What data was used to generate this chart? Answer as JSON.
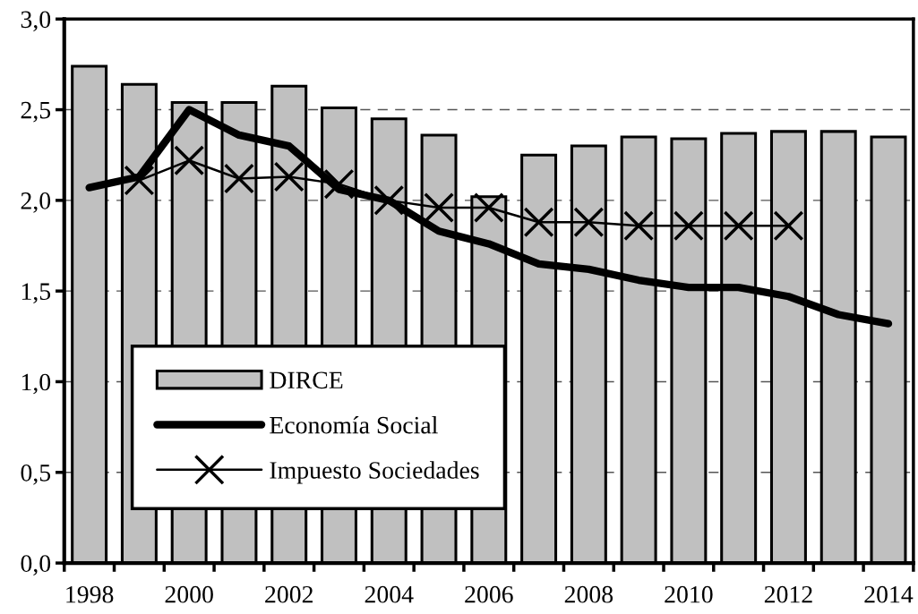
{
  "chart_data": {
    "type": "bar",
    "categories": [
      "1998",
      null,
      "2000",
      null,
      "2002",
      null,
      "2004",
      null,
      "2006",
      null,
      "2008",
      null,
      "2010",
      null,
      "2012",
      null,
      "2014"
    ],
    "series": [
      {
        "name": "DIRCE",
        "color": "#c0c0c0",
        "values": [
          2.74,
          2.64,
          2.54,
          2.54,
          2.63,
          2.51,
          2.45,
          2.36,
          2.02,
          2.25,
          2.3,
          2.35,
          2.34,
          2.37,
          2.38,
          2.38,
          2.35
        ]
      },
      {
        "name": "Economía Social",
        "type": "line",
        "color": "#000000",
        "marker": "none",
        "values": [
          2.07,
          2.13,
          2.5,
          2.36,
          2.3,
          2.06,
          2.0,
          1.83,
          1.76,
          1.65,
          1.62,
          1.56,
          1.52,
          1.52,
          1.47,
          1.37,
          1.32
        ]
      },
      {
        "name": "Impuesto Sociedades",
        "type": "line",
        "color": "#000000",
        "marker": "cross",
        "values": [
          null,
          2.11,
          2.22,
          2.12,
          2.13,
          2.09,
          2.0,
          1.96,
          1.96,
          1.88,
          1.88,
          1.86,
          1.86,
          1.86,
          1.86,
          null,
          null
        ]
      }
    ],
    "ylim": [
      0,
      3
    ],
    "yticks": [
      {
        "value": 0,
        "label": "0,0"
      },
      {
        "value": 0.5,
        "label": "0,5"
      },
      {
        "value": 1,
        "label": "1,0"
      },
      {
        "value": 1.5,
        "label": "1,5"
      },
      {
        "value": 2,
        "label": "2,0"
      },
      {
        "value": 2.5,
        "label": "2,5"
      },
      {
        "value": 3,
        "label": "3,0"
      }
    ],
    "grid": "y",
    "legend": "bottom left"
  }
}
